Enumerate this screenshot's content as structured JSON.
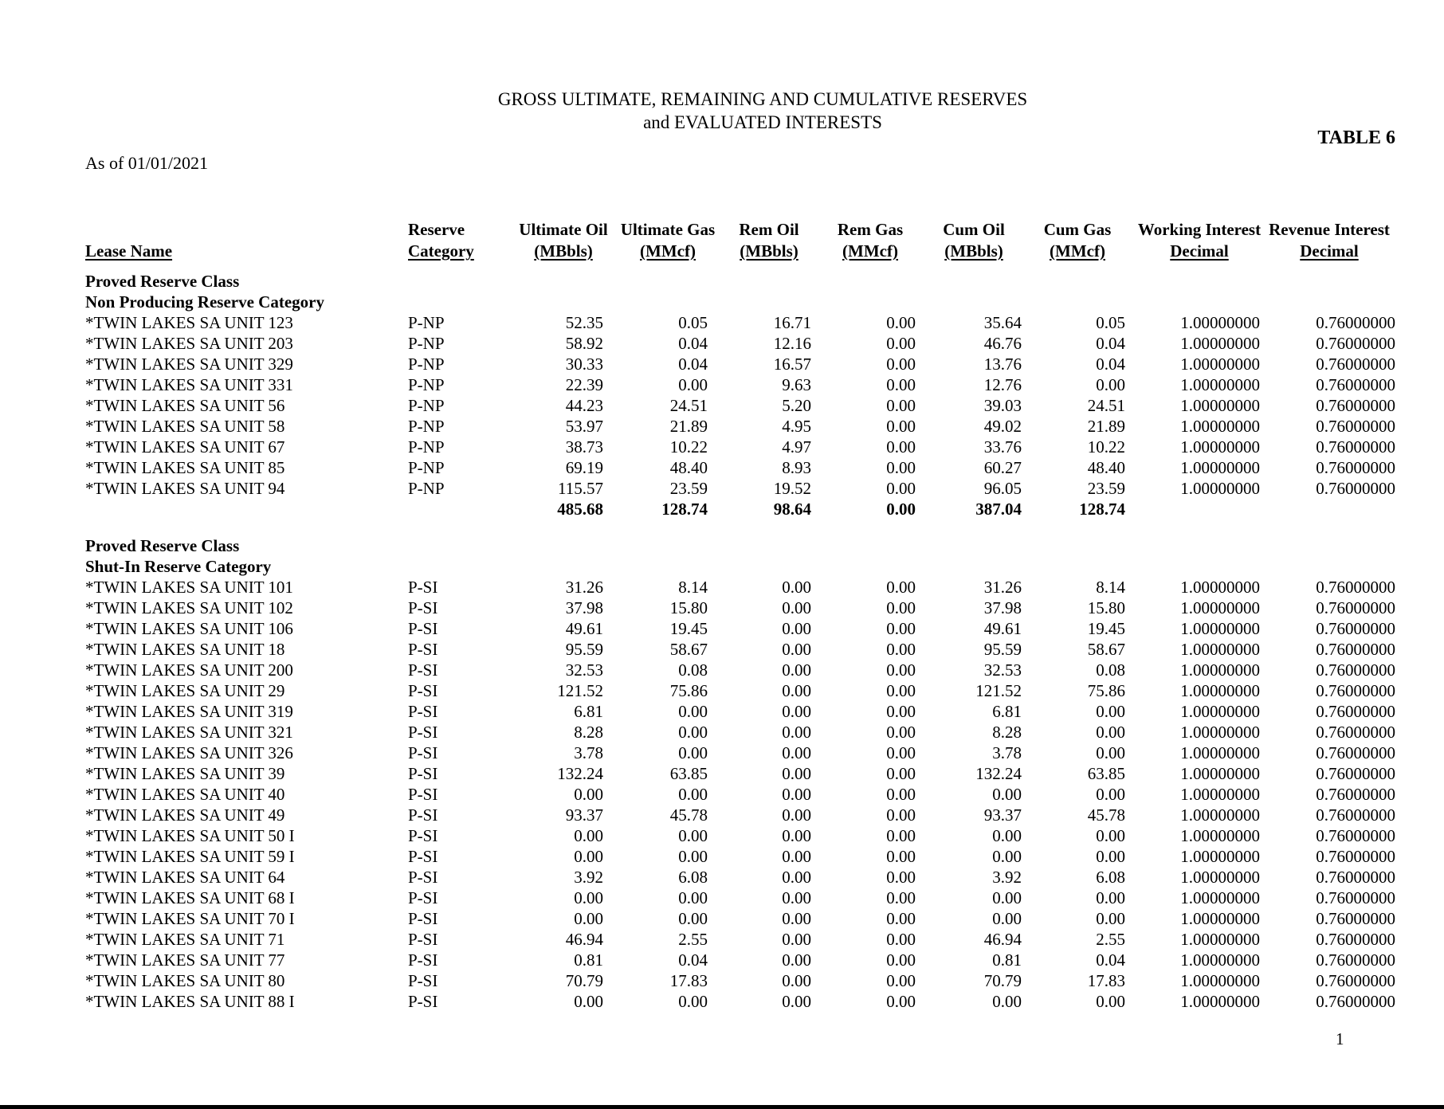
{
  "page": {
    "title_line1": "GROSS ULTIMATE, REMAINING AND CUMULATIVE RESERVES",
    "title_line2": "and EVALUATED INTERESTS",
    "table_label": "TABLE 6",
    "as_of": "As of 01/01/2021",
    "page_number": "1"
  },
  "table": {
    "headers": {
      "lease_name": "Lease Name",
      "cols": [
        {
          "l1": "Reserve",
          "l2": "Category"
        },
        {
          "l1": "Ultimate Oil",
          "l2": "(MBbls)"
        },
        {
          "l1": "Ultimate Gas",
          "l2": "(MMcf)"
        },
        {
          "l1": "Rem Oil",
          "l2": "(MBbls)"
        },
        {
          "l1": "Rem Gas",
          "l2": "(MMcf)"
        },
        {
          "l1": "Cum Oil",
          "l2": "(MBbls)"
        },
        {
          "l1": "Cum Gas",
          "l2": "(MMcf)"
        },
        {
          "l1": "Working Interest",
          "l2": "Decimal"
        },
        {
          "l1": "Revenue Interest",
          "l2": "Decimal"
        }
      ]
    },
    "sections": [
      {
        "class_label": "Proved Reserve Class",
        "category_label": "Non Producing Reserve Category",
        "rows": [
          {
            "lease": "*TWIN LAKES SA UNIT 123",
            "category": "P-NP",
            "values": [
              "52.35",
              "0.05",
              "16.71",
              "0.00",
              "35.64",
              "0.05",
              "1.00000000",
              "0.76000000"
            ]
          },
          {
            "lease": "*TWIN LAKES SA UNIT 203",
            "category": "P-NP",
            "values": [
              "58.92",
              "0.04",
              "12.16",
              "0.00",
              "46.76",
              "0.04",
              "1.00000000",
              "0.76000000"
            ]
          },
          {
            "lease": "*TWIN LAKES SA UNIT 329",
            "category": "P-NP",
            "values": [
              "30.33",
              "0.04",
              "16.57",
              "0.00",
              "13.76",
              "0.04",
              "1.00000000",
              "0.76000000"
            ]
          },
          {
            "lease": "*TWIN LAKES SA UNIT 331",
            "category": "P-NP",
            "values": [
              "22.39",
              "0.00",
              "9.63",
              "0.00",
              "12.76",
              "0.00",
              "1.00000000",
              "0.76000000"
            ]
          },
          {
            "lease": "*TWIN LAKES SA UNIT 56",
            "category": "P-NP",
            "values": [
              "44.23",
              "24.51",
              "5.20",
              "0.00",
              "39.03",
              "24.51",
              "1.00000000",
              "0.76000000"
            ]
          },
          {
            "lease": "*TWIN LAKES SA UNIT 58",
            "category": "P-NP",
            "values": [
              "53.97",
              "21.89",
              "4.95",
              "0.00",
              "49.02",
              "21.89",
              "1.00000000",
              "0.76000000"
            ]
          },
          {
            "lease": "*TWIN LAKES SA UNIT 67",
            "category": "P-NP",
            "values": [
              "38.73",
              "10.22",
              "4.97",
              "0.00",
              "33.76",
              "10.22",
              "1.00000000",
              "0.76000000"
            ]
          },
          {
            "lease": "*TWIN LAKES SA UNIT 85",
            "category": "P-NP",
            "values": [
              "69.19",
              "48.40",
              "8.93",
              "0.00",
              "60.27",
              "48.40",
              "1.00000000",
              "0.76000000"
            ]
          },
          {
            "lease": "*TWIN LAKES SA UNIT 94",
            "category": "P-NP",
            "values": [
              "115.57",
              "23.59",
              "19.52",
              "0.00",
              "96.05",
              "23.59",
              "1.00000000",
              "0.76000000"
            ]
          }
        ],
        "totals": [
          "485.68",
          "128.74",
          "98.64",
          "0.00",
          "387.04",
          "128.74"
        ]
      },
      {
        "class_label": "Proved Reserve Class",
        "category_label": "Shut-In Reserve Category",
        "rows": [
          {
            "lease": "*TWIN LAKES SA UNIT 101",
            "category": "P-SI",
            "values": [
              "31.26",
              "8.14",
              "0.00",
              "0.00",
              "31.26",
              "8.14",
              "1.00000000",
              "0.76000000"
            ]
          },
          {
            "lease": "*TWIN LAKES SA UNIT 102",
            "category": "P-SI",
            "values": [
              "37.98",
              "15.80",
              "0.00",
              "0.00",
              "37.98",
              "15.80",
              "1.00000000",
              "0.76000000"
            ]
          },
          {
            "lease": "*TWIN LAKES SA UNIT 106",
            "category": "P-SI",
            "values": [
              "49.61",
              "19.45",
              "0.00",
              "0.00",
              "49.61",
              "19.45",
              "1.00000000",
              "0.76000000"
            ]
          },
          {
            "lease": "*TWIN LAKES SA UNIT 18",
            "category": "P-SI",
            "values": [
              "95.59",
              "58.67",
              "0.00",
              "0.00",
              "95.59",
              "58.67",
              "1.00000000",
              "0.76000000"
            ]
          },
          {
            "lease": "*TWIN LAKES SA UNIT 200",
            "category": "P-SI",
            "values": [
              "32.53",
              "0.08",
              "0.00",
              "0.00",
              "32.53",
              "0.08",
              "1.00000000",
              "0.76000000"
            ]
          },
          {
            "lease": "*TWIN LAKES SA UNIT 29",
            "category": "P-SI",
            "values": [
              "121.52",
              "75.86",
              "0.00",
              "0.00",
              "121.52",
              "75.86",
              "1.00000000",
              "0.76000000"
            ]
          },
          {
            "lease": "*TWIN LAKES SA UNIT 319",
            "category": "P-SI",
            "values": [
              "6.81",
              "0.00",
              "0.00",
              "0.00",
              "6.81",
              "0.00",
              "1.00000000",
              "0.76000000"
            ]
          },
          {
            "lease": "*TWIN LAKES SA UNIT 321",
            "category": "P-SI",
            "values": [
              "8.28",
              "0.00",
              "0.00",
              "0.00",
              "8.28",
              "0.00",
              "1.00000000",
              "0.76000000"
            ]
          },
          {
            "lease": "*TWIN LAKES SA UNIT 326",
            "category": "P-SI",
            "values": [
              "3.78",
              "0.00",
              "0.00",
              "0.00",
              "3.78",
              "0.00",
              "1.00000000",
              "0.76000000"
            ]
          },
          {
            "lease": "*TWIN LAKES SA UNIT 39",
            "category": "P-SI",
            "values": [
              "132.24",
              "63.85",
              "0.00",
              "0.00",
              "132.24",
              "63.85",
              "1.00000000",
              "0.76000000"
            ]
          },
          {
            "lease": "*TWIN LAKES SA UNIT 40",
            "category": "P-SI",
            "values": [
              "0.00",
              "0.00",
              "0.00",
              "0.00",
              "0.00",
              "0.00",
              "1.00000000",
              "0.76000000"
            ]
          },
          {
            "lease": "*TWIN LAKES SA UNIT 49",
            "category": "P-SI",
            "values": [
              "93.37",
              "45.78",
              "0.00",
              "0.00",
              "93.37",
              "45.78",
              "1.00000000",
              "0.76000000"
            ]
          },
          {
            "lease": "*TWIN LAKES SA UNIT 50 I",
            "category": "P-SI",
            "values": [
              "0.00",
              "0.00",
              "0.00",
              "0.00",
              "0.00",
              "0.00",
              "1.00000000",
              "0.76000000"
            ]
          },
          {
            "lease": "*TWIN LAKES SA UNIT 59 I",
            "category": "P-SI",
            "values": [
              "0.00",
              "0.00",
              "0.00",
              "0.00",
              "0.00",
              "0.00",
              "1.00000000",
              "0.76000000"
            ]
          },
          {
            "lease": "*TWIN LAKES SA UNIT 64",
            "category": "P-SI",
            "values": [
              "3.92",
              "6.08",
              "0.00",
              "0.00",
              "3.92",
              "6.08",
              "1.00000000",
              "0.76000000"
            ]
          },
          {
            "lease": "*TWIN LAKES SA UNIT 68 I",
            "category": "P-SI",
            "values": [
              "0.00",
              "0.00",
              "0.00",
              "0.00",
              "0.00",
              "0.00",
              "1.00000000",
              "0.76000000"
            ]
          },
          {
            "lease": "*TWIN LAKES SA UNIT 70 I",
            "category": "P-SI",
            "values": [
              "0.00",
              "0.00",
              "0.00",
              "0.00",
              "0.00",
              "0.00",
              "1.00000000",
              "0.76000000"
            ]
          },
          {
            "lease": "*TWIN LAKES SA UNIT 71",
            "category": "P-SI",
            "values": [
              "46.94",
              "2.55",
              "0.00",
              "0.00",
              "46.94",
              "2.55",
              "1.00000000",
              "0.76000000"
            ]
          },
          {
            "lease": "*TWIN LAKES SA UNIT 77",
            "category": "P-SI",
            "values": [
              "0.81",
              "0.04",
              "0.00",
              "0.00",
              "0.81",
              "0.04",
              "1.00000000",
              "0.76000000"
            ]
          },
          {
            "lease": "*TWIN LAKES SA UNIT 80",
            "category": "P-SI",
            "values": [
              "70.79",
              "17.83",
              "0.00",
              "0.00",
              "70.79",
              "17.83",
              "1.00000000",
              "0.76000000"
            ]
          },
          {
            "lease": "*TWIN LAKES SA UNIT 88 I",
            "category": "P-SI",
            "values": [
              "0.00",
              "0.00",
              "0.00",
              "0.00",
              "0.00",
              "0.00",
              "1.00000000",
              "0.76000000"
            ]
          }
        ],
        "totals": null
      }
    ]
  }
}
